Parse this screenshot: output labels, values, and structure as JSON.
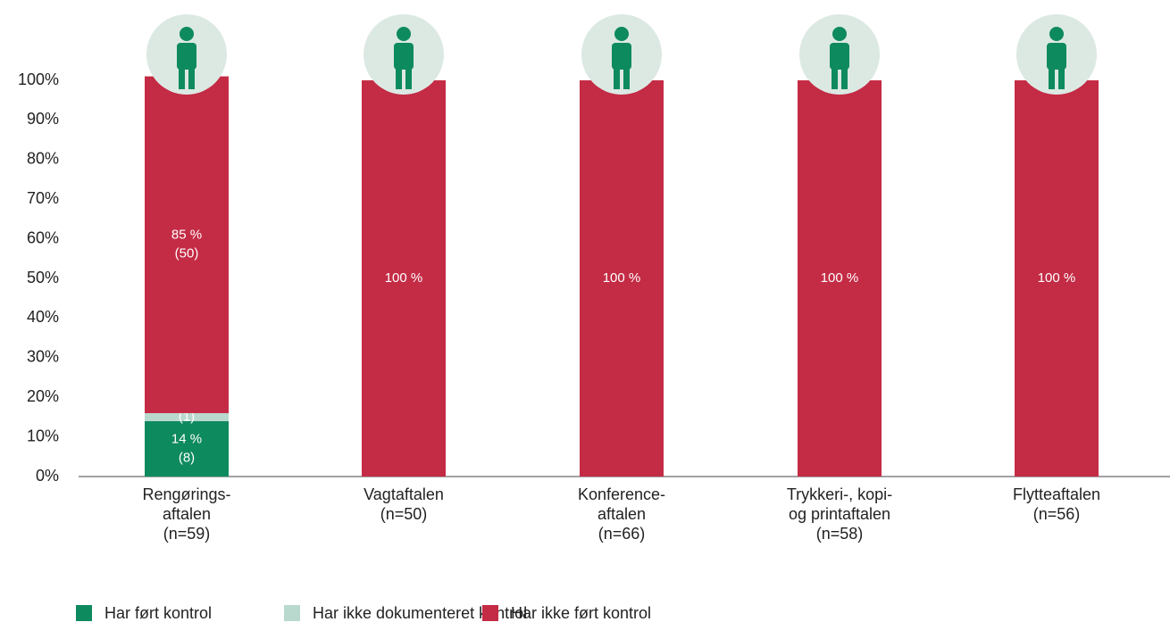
{
  "chart_data": {
    "type": "stacked_bar",
    "categories": [
      [
        "Rengørings-",
        "aftalen",
        "(n=59)"
      ],
      [
        "Vagtaftalen",
        "(n=50)"
      ],
      [
        "Konference-",
        "aftalen",
        "(n=66)"
      ],
      [
        "Trykkeri-, kopi-",
        "og printaftalen",
        "(n=58)"
      ],
      [
        "Flytteaftalen",
        "(n=56)"
      ]
    ],
    "series": [
      {
        "name": "Har ført kontrol",
        "color": "#0e8a5f",
        "values": [
          14,
          0,
          0,
          0,
          0
        ],
        "value_labels": [
          [
            "14 %",
            "(8)"
          ],
          null,
          null,
          null,
          null
        ]
      },
      {
        "name": "Har ikke dokumenteret kontrol",
        "color": "#b9d9cf",
        "values": [
          2,
          0,
          0,
          0,
          0
        ],
        "value_labels": [
          [
            "2 %",
            "(1)"
          ],
          null,
          null,
          null,
          null
        ]
      },
      {
        "name": "Har ikke ført kontrol",
        "color": "#c42b45",
        "values": [
          85,
          100,
          100,
          100,
          100
        ],
        "value_labels": [
          [
            "85 %",
            "(50)"
          ],
          [
            "100 %"
          ],
          [
            "100 %"
          ],
          [
            "100 %"
          ],
          [
            "100 %"
          ]
        ]
      }
    ],
    "ylim": [
      0,
      100
    ],
    "yticks": [
      {
        "value": 0,
        "label": "0%"
      },
      {
        "value": 10,
        "label": "10%"
      },
      {
        "value": 20,
        "label": "20%"
      },
      {
        "value": 30,
        "label": "30%"
      },
      {
        "value": 40,
        "label": "40%"
      },
      {
        "value": 50,
        "label": "50%"
      },
      {
        "value": 60,
        "label": "60%"
      },
      {
        "value": 70,
        "label": "70%"
      },
      {
        "value": 80,
        "label": "80%"
      },
      {
        "value": 90,
        "label": "90%"
      },
      {
        "value": 100,
        "label": "100%"
      }
    ],
    "grid": false,
    "legend": "bottom-left"
  }
}
